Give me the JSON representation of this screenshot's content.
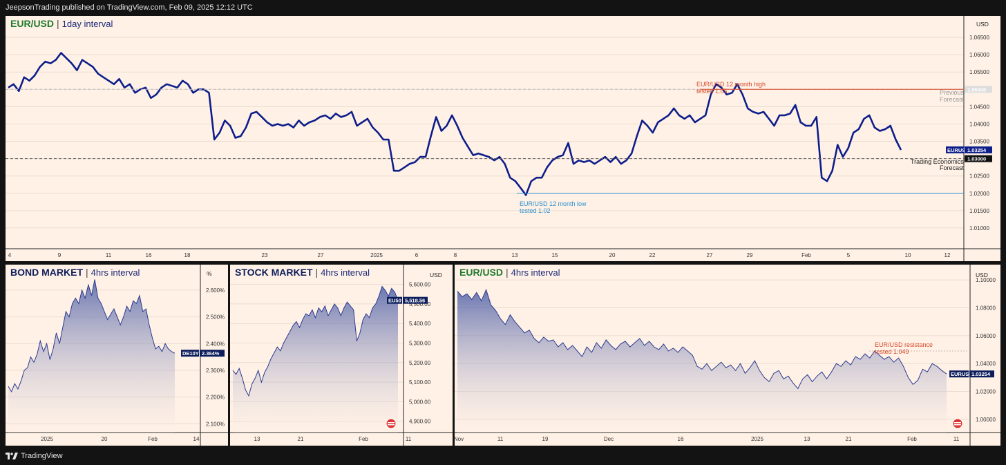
{
  "header": {
    "publisher_text": "JeepsonTrading published on TradingView.com, Feb 09, 2025 12:12 UTC"
  },
  "footer": {
    "brand": "TradingView",
    "logo_icon": "tradingview-logo-icon"
  },
  "chart_data": [
    {
      "type": "line",
      "title": "EUR/USD",
      "subtitle": "1day interval",
      "currency": "USD",
      "ylim": [
        1.005,
        1.07
      ],
      "yticks": [
        1.01,
        1.015,
        1.02,
        1.025,
        1.03,
        1.035,
        1.04,
        1.045,
        1.05,
        1.055,
        1.06,
        1.065
      ],
      "ytick_labels": [
        "1.01000",
        "1.01500",
        "1.02000",
        "1.02500",
        "1.03000",
        "1.03500",
        "1.04000",
        "1.04500",
        "1.05000",
        "1.05500",
        "1.06000",
        "1.06500"
      ],
      "xtick_labels": [
        "4",
        "9",
        "11",
        "16",
        "18",
        "23",
        "27",
        "2025",
        "6",
        "8",
        "13",
        "15",
        "20",
        "22",
        "27",
        "29",
        "Feb",
        "5",
        "10",
        "12"
      ],
      "series": [
        {
          "color": "#0d1e8a",
          "values": [
            1.0505,
            1.0515,
            1.0495,
            1.0535,
            1.0525,
            1.054,
            1.0565,
            1.058,
            1.0575,
            1.0585,
            1.0605,
            1.059,
            1.0575,
            1.0555,
            1.0585,
            1.0575,
            1.0565,
            1.0545,
            1.0535,
            1.0525,
            1.0515,
            1.053,
            1.0505,
            1.0515,
            1.049,
            1.05,
            1.0505,
            1.0475,
            1.0485,
            1.0505,
            1.0515,
            1.051,
            1.0505,
            1.0525,
            1.0515,
            1.049,
            1.05,
            1.05,
            1.049,
            1.0355,
            1.0375,
            1.041,
            1.0395,
            1.036,
            1.0365,
            1.039,
            1.043,
            1.0435,
            1.042,
            1.0405,
            1.0395,
            1.04,
            1.0395,
            1.04,
            1.039,
            1.041,
            1.0395,
            1.0405,
            1.041,
            1.042,
            1.0425,
            1.0415,
            1.043,
            1.042,
            1.0425,
            1.0435,
            1.0395,
            1.0405,
            1.0415,
            1.039,
            1.0375,
            1.0355,
            1.0355,
            1.0265,
            1.0265,
            1.0275,
            1.0285,
            1.029,
            1.0305,
            1.0305,
            1.0365,
            1.042,
            1.038,
            1.0395,
            1.0425,
            1.0395,
            1.036,
            1.0335,
            1.031,
            1.0315,
            1.031,
            1.0305,
            1.0295,
            1.0305,
            1.0285,
            1.0245,
            1.0235,
            1.0215,
            1.0195,
            1.0235,
            1.0245,
            1.0245,
            1.0275,
            1.0295,
            1.0305,
            1.031,
            1.0345,
            1.0285,
            1.0295,
            1.029,
            1.0295,
            1.0285,
            1.0295,
            1.0305,
            1.029,
            1.0305,
            1.0285,
            1.0295,
            1.0315,
            1.0365,
            1.041,
            1.0395,
            1.0375,
            1.0405,
            1.0415,
            1.0425,
            1.0445,
            1.0425,
            1.0415,
            1.0425,
            1.0405,
            1.0415,
            1.0425,
            1.0485,
            1.0515,
            1.0505,
            1.0485,
            1.049,
            1.0515,
            1.0485,
            1.0445,
            1.0435,
            1.043,
            1.0435,
            1.0415,
            1.0395,
            1.0425,
            1.0425,
            1.043,
            1.0455,
            1.0405,
            1.0395,
            1.0395,
            1.042,
            1.0245,
            1.0235,
            1.0265,
            1.034,
            1.0305,
            1.033,
            1.0375,
            1.0385,
            1.0415,
            1.0425,
            1.039,
            1.038,
            1.0385,
            1.0395,
            1.0355,
            1.0325
          ]
        }
      ],
      "annotations": [
        {
          "text": "EUR/USD 12 month high",
          "text2": "tested 1.05",
          "value": 1.05,
          "color": "#d64a2b"
        },
        {
          "text": "EUR/USD 12 month low",
          "text2": "tested 1.02",
          "value": 1.02,
          "color": "#2a8fd0"
        },
        {
          "text": "Previous",
          "text2": "Forecast",
          "value": 1.05,
          "color": "#999999"
        },
        {
          "text": "Trading Economics",
          "text2": "Forecast",
          "value": 1.03,
          "color": "#222222"
        }
      ],
      "price_tags": [
        {
          "symbol": "EURUSD",
          "value_label": "1.03254",
          "value": 1.03254,
          "color": "#0d1e8a"
        },
        {
          "value_label": "1.03000",
          "value": 1.03,
          "color": "#111111"
        },
        {
          "value_label": "1.05000",
          "value": 1.05,
          "color": "#dddddd"
        }
      ]
    },
    {
      "type": "area",
      "title": "BOND MARKET",
      "subtitle": "4hrs interval",
      "currency": "%",
      "ylim": [
        2.08,
        2.68
      ],
      "yticks": [
        2.1,
        2.2,
        2.3,
        2.4,
        2.5,
        2.6
      ],
      "ytick_labels": [
        "2.100%",
        "2.200%",
        "2.300%",
        "2.400%",
        "2.500%",
        "2.600%"
      ],
      "xtick_labels": [
        "2025",
        "20",
        "Feb",
        "14"
      ],
      "series": [
        {
          "color": "#2a3b8f",
          "values": [
            2.24,
            2.22,
            2.25,
            2.23,
            2.26,
            2.3,
            2.31,
            2.35,
            2.33,
            2.36,
            2.41,
            2.37,
            2.4,
            2.34,
            2.38,
            2.44,
            2.4,
            2.46,
            2.52,
            2.5,
            2.55,
            2.57,
            2.55,
            2.6,
            2.57,
            2.62,
            2.58,
            2.64,
            2.57,
            2.55,
            2.52,
            2.49,
            2.51,
            2.53,
            2.5,
            2.47,
            2.5,
            2.54,
            2.52,
            2.56,
            2.55,
            2.58,
            2.52,
            2.53,
            2.47,
            2.42,
            2.38,
            2.39,
            2.37,
            2.4,
            2.38,
            2.37,
            2.364
          ]
        }
      ],
      "price_tags": [
        {
          "symbol": "DE10Y",
          "value_label": "2.364%",
          "value": 2.364,
          "color": "#0d1e5c"
        }
      ]
    },
    {
      "type": "area",
      "title": "STOCK MARKET",
      "subtitle": "4hrs interval",
      "currency": "USD",
      "ylim": [
        4860,
        5680
      ],
      "yticks": [
        4900,
        5000,
        5100,
        5200,
        5300,
        5400,
        5500,
        5600
      ],
      "ytick_labels": [
        "4,900.00",
        "5,000.00",
        "5,100.00",
        "5,200.00",
        "5,300.00",
        "5,400.00",
        "5,500.00",
        "5,600.00"
      ],
      "xtick_labels": [
        "13",
        "21",
        "Feb",
        "11"
      ],
      "series": [
        {
          "color": "#2a3b8f",
          "values": [
            5160,
            5140,
            5170,
            5120,
            5060,
            5030,
            5090,
            5120,
            5160,
            5100,
            5150,
            5180,
            5220,
            5250,
            5280,
            5260,
            5300,
            5330,
            5360,
            5390,
            5410,
            5380,
            5420,
            5450,
            5440,
            5470,
            5430,
            5480,
            5460,
            5490,
            5440,
            5470,
            5500,
            5480,
            5440,
            5480,
            5510,
            5490,
            5470,
            5310,
            5350,
            5420,
            5450,
            5430,
            5480,
            5500,
            5540,
            5590,
            5570,
            5540,
            5580,
            5560,
            5518.56
          ]
        }
      ],
      "price_tags": [
        {
          "symbol": "EU50",
          "value_label": "5,518.56",
          "value": 5518.56,
          "color": "#0d1e5c"
        }
      ]
    },
    {
      "type": "area",
      "title": "EUR/USD",
      "subtitle": "4hrs interval",
      "currency": "USD",
      "ylim": [
        0.993,
        1.108
      ],
      "yticks": [
        1.0,
        1.02,
        1.04,
        1.06,
        1.08,
        1.1
      ],
      "ytick_labels": [
        "1.00000",
        "1.02000",
        "1.04000",
        "1.06000",
        "1.08000",
        "1.10000"
      ],
      "xtick_labels": [
        "Nov",
        "11",
        "19",
        "Dec",
        "16",
        "2025",
        "13",
        "21",
        "Feb",
        "11"
      ],
      "series": [
        {
          "color": "#2a3b8f",
          "values": [
            1.092,
            1.088,
            1.09,
            1.086,
            1.091,
            1.085,
            1.093,
            1.082,
            1.078,
            1.072,
            1.068,
            1.075,
            1.07,
            1.066,
            1.062,
            1.064,
            1.058,
            1.055,
            1.059,
            1.056,
            1.057,
            1.052,
            1.055,
            1.05,
            1.053,
            1.049,
            1.045,
            1.052,
            1.048,
            1.055,
            1.051,
            1.057,
            1.053,
            1.05,
            1.054,
            1.056,
            1.052,
            1.055,
            1.058,
            1.053,
            1.056,
            1.052,
            1.05,
            1.054,
            1.049,
            1.051,
            1.048,
            1.052,
            1.049,
            1.046,
            1.038,
            1.036,
            1.04,
            1.035,
            1.038,
            1.041,
            1.037,
            1.039,
            1.035,
            1.04,
            1.033,
            1.037,
            1.042,
            1.035,
            1.03,
            1.027,
            1.033,
            1.035,
            1.029,
            1.031,
            1.026,
            1.022,
            1.029,
            1.032,
            1.027,
            1.031,
            1.034,
            1.029,
            1.034,
            1.04,
            1.038,
            1.042,
            1.039,
            1.045,
            1.043,
            1.047,
            1.044,
            1.049,
            1.046,
            1.043,
            1.045,
            1.041,
            1.044,
            1.038,
            1.03,
            1.025,
            1.028,
            1.036,
            1.034,
            1.04,
            1.038,
            1.035,
            1.03254
          ]
        }
      ],
      "annotations": [
        {
          "text": "EUR/USD resistance",
          "text2": "tested 1.049",
          "value": 1.049,
          "color": "#d64a2b"
        }
      ],
      "price_tags": [
        {
          "symbol": "EURUSD",
          "value_label": "1.03254",
          "value": 1.03254,
          "color": "#0d1e5c"
        }
      ]
    }
  ]
}
